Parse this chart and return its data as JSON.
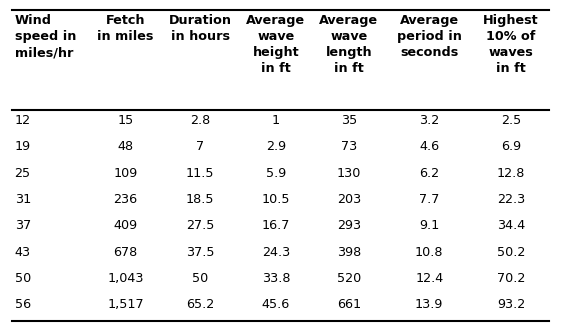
{
  "col_headers": [
    "Wind\nspeed in\nmiles/hr",
    "Fetch\nin miles",
    "Duration\nin hours",
    "Average\nwave\nheight\nin ft",
    "Average\nwave\nlength\nin ft",
    "Average\nperiod in\nseconds",
    "Highest\n10% of\nwaves\nin ft"
  ],
  "rows": [
    [
      "12",
      "15",
      "2.8",
      "1",
      "35",
      "3.2",
      "2.5"
    ],
    [
      "19",
      "48",
      "7",
      "2.9",
      "73",
      "4.6",
      "6.9"
    ],
    [
      "25",
      "109",
      "11.5",
      "5.9",
      "130",
      "6.2",
      "12.8"
    ],
    [
      "31",
      "236",
      "18.5",
      "10.5",
      "203",
      "7.7",
      "22.3"
    ],
    [
      "37",
      "409",
      "27.5",
      "16.7",
      "293",
      "9.1",
      "34.4"
    ],
    [
      "43",
      "678",
      "37.5",
      "24.3",
      "398",
      "10.8",
      "50.2"
    ],
    [
      "50",
      "1,043",
      "50",
      "33.8",
      "520",
      "12.4",
      "70.2"
    ],
    [
      "56",
      "1,517",
      "65.2",
      "45.6",
      "661",
      "13.9",
      "93.2"
    ]
  ],
  "header_bg": "#ffffff",
  "text_color": "#000000",
  "line_color": "#000000",
  "font_size": 9.2,
  "header_font_size": 9.2,
  "fig_width": 5.84,
  "fig_height": 3.34,
  "dpi": 100
}
